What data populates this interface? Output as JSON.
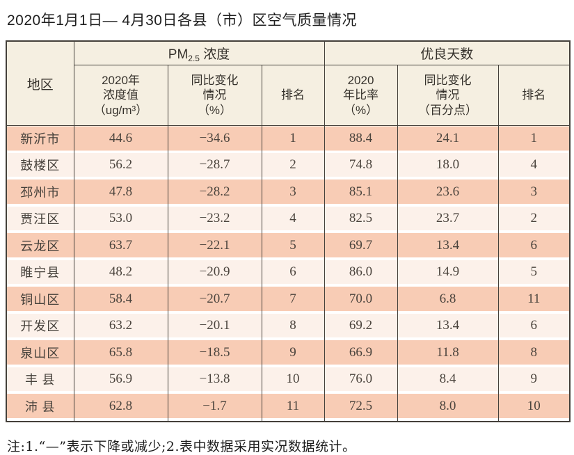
{
  "page": {
    "title": "2020年1月1日— 4月30日各县（市）区空气质量情况",
    "note": "注:1.“—”表示下降或减少;2.表中数据采用实况数据统计。"
  },
  "chart_data": {
    "type": "table",
    "title": "2020年1月1日— 4月30日各县（市）区空气质量情况",
    "region_header": "地区",
    "pm_group": {
      "prefix": "PM",
      "sub": "2.5",
      "suffix": " 浓度"
    },
    "good_group": "优良天数",
    "subheaders": {
      "pm_value": "2020年\n浓度值\n（ug/m³）",
      "pm_change": "同比变化\n情况\n（%）",
      "pm_rank": "排名",
      "good_rate": "2020\n年比率\n（%）",
      "good_change": "同比变化\n情况\n（百分点）",
      "good_rank": "排名"
    },
    "rows": [
      {
        "region": "新沂市",
        "pm_value": "44.6",
        "pm_change": "−34.6",
        "pm_rank": "1",
        "good_rate": "88.4",
        "good_change": "24.1",
        "good_rank": "1"
      },
      {
        "region": "鼓楼区",
        "pm_value": "56.2",
        "pm_change": "−28.7",
        "pm_rank": "2",
        "good_rate": "74.8",
        "good_change": "18.0",
        "good_rank": "4"
      },
      {
        "region": "邳州市",
        "pm_value": "47.8",
        "pm_change": "−28.2",
        "pm_rank": "3",
        "good_rate": "85.1",
        "good_change": "23.6",
        "good_rank": "3"
      },
      {
        "region": "贾汪区",
        "pm_value": "53.0",
        "pm_change": "−23.2",
        "pm_rank": "4",
        "good_rate": "82.5",
        "good_change": "23.7",
        "good_rank": "2"
      },
      {
        "region": "云龙区",
        "pm_value": "63.7",
        "pm_change": "−22.1",
        "pm_rank": "5",
        "good_rate": "69.7",
        "good_change": "13.4",
        "good_rank": "6"
      },
      {
        "region": "睢宁县",
        "pm_value": "48.2",
        "pm_change": "−20.9",
        "pm_rank": "6",
        "good_rate": "86.0",
        "good_change": "14.9",
        "good_rank": "5"
      },
      {
        "region": "铜山区",
        "pm_value": "58.4",
        "pm_change": "−20.7",
        "pm_rank": "7",
        "good_rate": "70.0",
        "good_change": "6.8",
        "good_rank": "11"
      },
      {
        "region": "开发区",
        "pm_value": "63.2",
        "pm_change": "−20.1",
        "pm_rank": "8",
        "good_rate": "69.2",
        "good_change": "13.4",
        "good_rank": "6"
      },
      {
        "region": "泉山区",
        "pm_value": "65.8",
        "pm_change": "−18.5",
        "pm_rank": "9",
        "good_rate": "66.9",
        "good_change": "11.8",
        "good_rank": "8"
      },
      {
        "region": "丰 县",
        "pm_value": "56.9",
        "pm_change": "−13.8",
        "pm_rank": "10",
        "good_rate": "76.0",
        "good_change": "8.4",
        "good_rank": "9"
      },
      {
        "region": "沛 县",
        "pm_value": "62.8",
        "pm_change": "−1.7",
        "pm_rank": "11",
        "good_rate": "72.5",
        "good_change": "8.0",
        "good_rank": "10"
      }
    ]
  },
  "colors": {
    "row_band_peach": "#f8ccb5",
    "row_band_light": "#fcf1ea",
    "header_cream": "#f5efe1",
    "table_border": "#44403a"
  }
}
